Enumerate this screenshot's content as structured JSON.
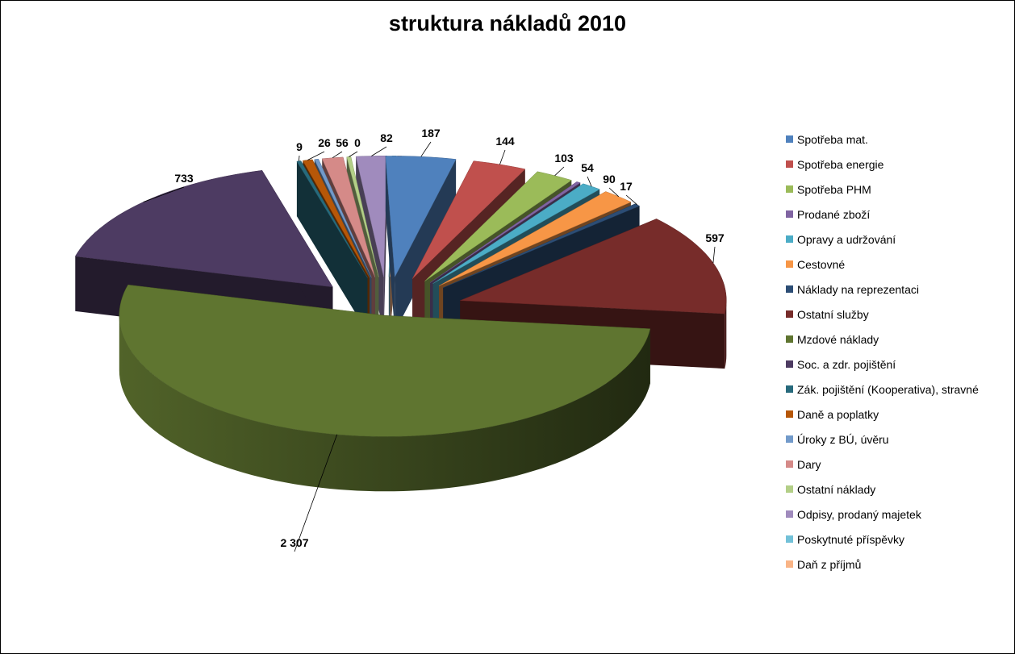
{
  "chart_data": {
    "type": "pie",
    "style": "3d-exploded",
    "title": "struktura nákladů 2010",
    "legend_position": "right",
    "slices": [
      {
        "label": "Spotřeba mat.",
        "value": 187,
        "value_label": "187",
        "color": "#4F81BD"
      },
      {
        "label": "Spotřeba energie",
        "value": 144,
        "value_label": "144",
        "color": "#C0504D"
      },
      {
        "label": "Spotřeba PHM",
        "value": 103,
        "value_label": "103",
        "color": "#9BBB59"
      },
      {
        "label": "Prodané zboží",
        "value": 1,
        "value_label": "",
        "color": "#8064A2"
      },
      {
        "label": "Opravy a udržování",
        "value": 54,
        "value_label": "54",
        "color": "#4BACC6"
      },
      {
        "label": "Cestovné",
        "value": 90,
        "value_label": "90",
        "color": "#F79646"
      },
      {
        "label": "Náklady na reprezentaci",
        "value": 17,
        "value_label": "17",
        "color": "#2C4D75"
      },
      {
        "label": "Ostatní služby",
        "value": 597,
        "value_label": "597",
        "color": "#772C2A"
      },
      {
        "label": "Mzdové náklady",
        "value": 2307,
        "value_label": "2 307",
        "color": "#5F7530"
      },
      {
        "label": "Soc. a zdr. pojištění",
        "value": 733,
        "value_label": "733",
        "color": "#4D3B62"
      },
      {
        "label": "Zák. pojištění (Kooperativa), stravné",
        "value": 9,
        "value_label": "9",
        "color": "#276A7C"
      },
      {
        "label": "Daně a poplatky",
        "value": 26,
        "value_label": "26",
        "color": "#B65708"
      },
      {
        "label": "Úroky z BÚ, úvěru",
        "value": 1,
        "value_label": "",
        "color": "#729ACA"
      },
      {
        "label": "Dary",
        "value": 56,
        "value_label": "56",
        "color": "#D58A88"
      },
      {
        "label": "Ostatní náklady",
        "value": 0,
        "value_label": "0",
        "color": "#B3CF87"
      },
      {
        "label": "Odpisy, prodaný majetek",
        "value": 82,
        "value_label": "82",
        "color": "#A08BBD"
      },
      {
        "label": "Poskytnuté příspěvky",
        "value": 0,
        "value_label": "",
        "color": "#72C1D8"
      },
      {
        "label": "Daň z příjmů",
        "value": 0,
        "value_label": "",
        "color": "#F9B486"
      }
    ]
  }
}
